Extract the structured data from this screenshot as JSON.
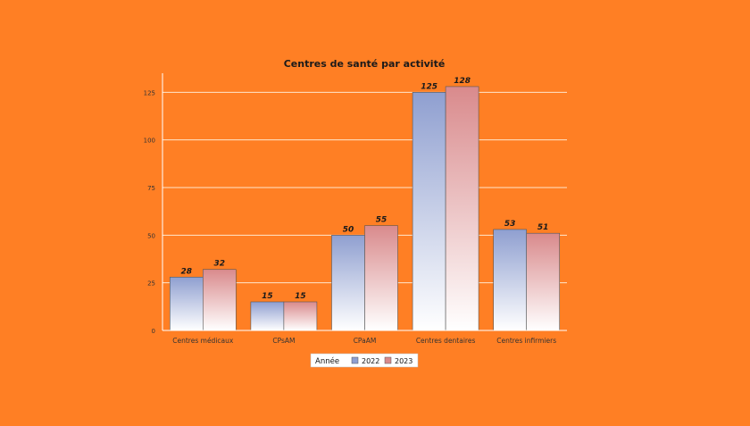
{
  "chart_data": {
    "type": "bar",
    "title": "Centres de santé par activité",
    "xlabel": "",
    "ylabel": "",
    "categories": [
      "Centres médicaux",
      "CPsAM",
      "CPaAM",
      "Centres dentaires",
      "Centres infirmiers"
    ],
    "series": [
      {
        "name": "2022",
        "values": [
          28,
          15,
          50,
          125,
          53
        ],
        "color": "#8f9fd0"
      },
      {
        "name": "2023",
        "values": [
          32,
          15,
          55,
          128,
          51
        ],
        "color": "#d98a8c"
      }
    ],
    "ylim": [
      0,
      135
    ],
    "yticks": [
      0,
      25,
      50,
      75,
      100,
      125
    ],
    "grid": true,
    "legend": {
      "title": "Année",
      "placement": "bottom-center"
    },
    "colors": {
      "background": "#ff7f24",
      "gridline": "#ffe6cc",
      "axis": "#ffffff"
    }
  }
}
